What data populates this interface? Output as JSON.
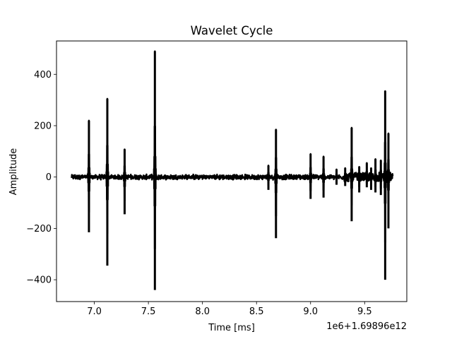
{
  "chart_data": {
    "type": "line",
    "title": "Wavelet Cycle",
    "xlabel": "Time [ms]",
    "ylabel": "Amplitude",
    "x_offset_label": "1e6+1.69896e12",
    "xlim": [
      6.65,
      9.89
    ],
    "ylim": [
      -485,
      530
    ],
    "xticks": [
      7.0,
      7.5,
      8.0,
      8.5,
      9.0,
      9.5
    ],
    "xtick_labels": [
      "7.0",
      "7.5",
      "8.0",
      "8.5",
      "9.0",
      "9.5"
    ],
    "yticks": [
      -400,
      -200,
      0,
      200,
      400
    ],
    "ytick_labels": [
      "−400",
      "−200",
      "0",
      "200",
      "400"
    ],
    "grid": false,
    "line_color": "#000000",
    "series": [
      {
        "x_range": [
          6.79,
          9.76
        ],
        "baseline_amplitude": 8,
        "spikes": [
          {
            "x": 6.95,
            "max": 220,
            "min": -215
          },
          {
            "x": 7.12,
            "max": 305,
            "min": -345
          },
          {
            "x": 7.28,
            "max": 108,
            "min": -145
          },
          {
            "x": 7.56,
            "max": 490,
            "min": -440
          },
          {
            "x": 8.61,
            "max": 45,
            "min": -50
          },
          {
            "x": 8.68,
            "max": 185,
            "min": -238
          },
          {
            "x": 9.0,
            "max": 90,
            "min": -85
          },
          {
            "x": 9.12,
            "max": 80,
            "min": -80
          },
          {
            "x": 9.24,
            "max": 30,
            "min": -30
          },
          {
            "x": 9.32,
            "max": 35,
            "min": -35
          },
          {
            "x": 9.38,
            "max": 192,
            "min": -172
          },
          {
            "x": 9.45,
            "max": 40,
            "min": -60
          },
          {
            "x": 9.52,
            "max": 55,
            "min": -40
          },
          {
            "x": 9.56,
            "max": 35,
            "min": -50
          },
          {
            "x": 9.6,
            "max": 70,
            "min": -60
          },
          {
            "x": 9.65,
            "max": 65,
            "min": -70
          },
          {
            "x": 9.69,
            "max": 335,
            "min": -400
          },
          {
            "x": 9.72,
            "max": 170,
            "min": -200
          }
        ]
      }
    ]
  }
}
